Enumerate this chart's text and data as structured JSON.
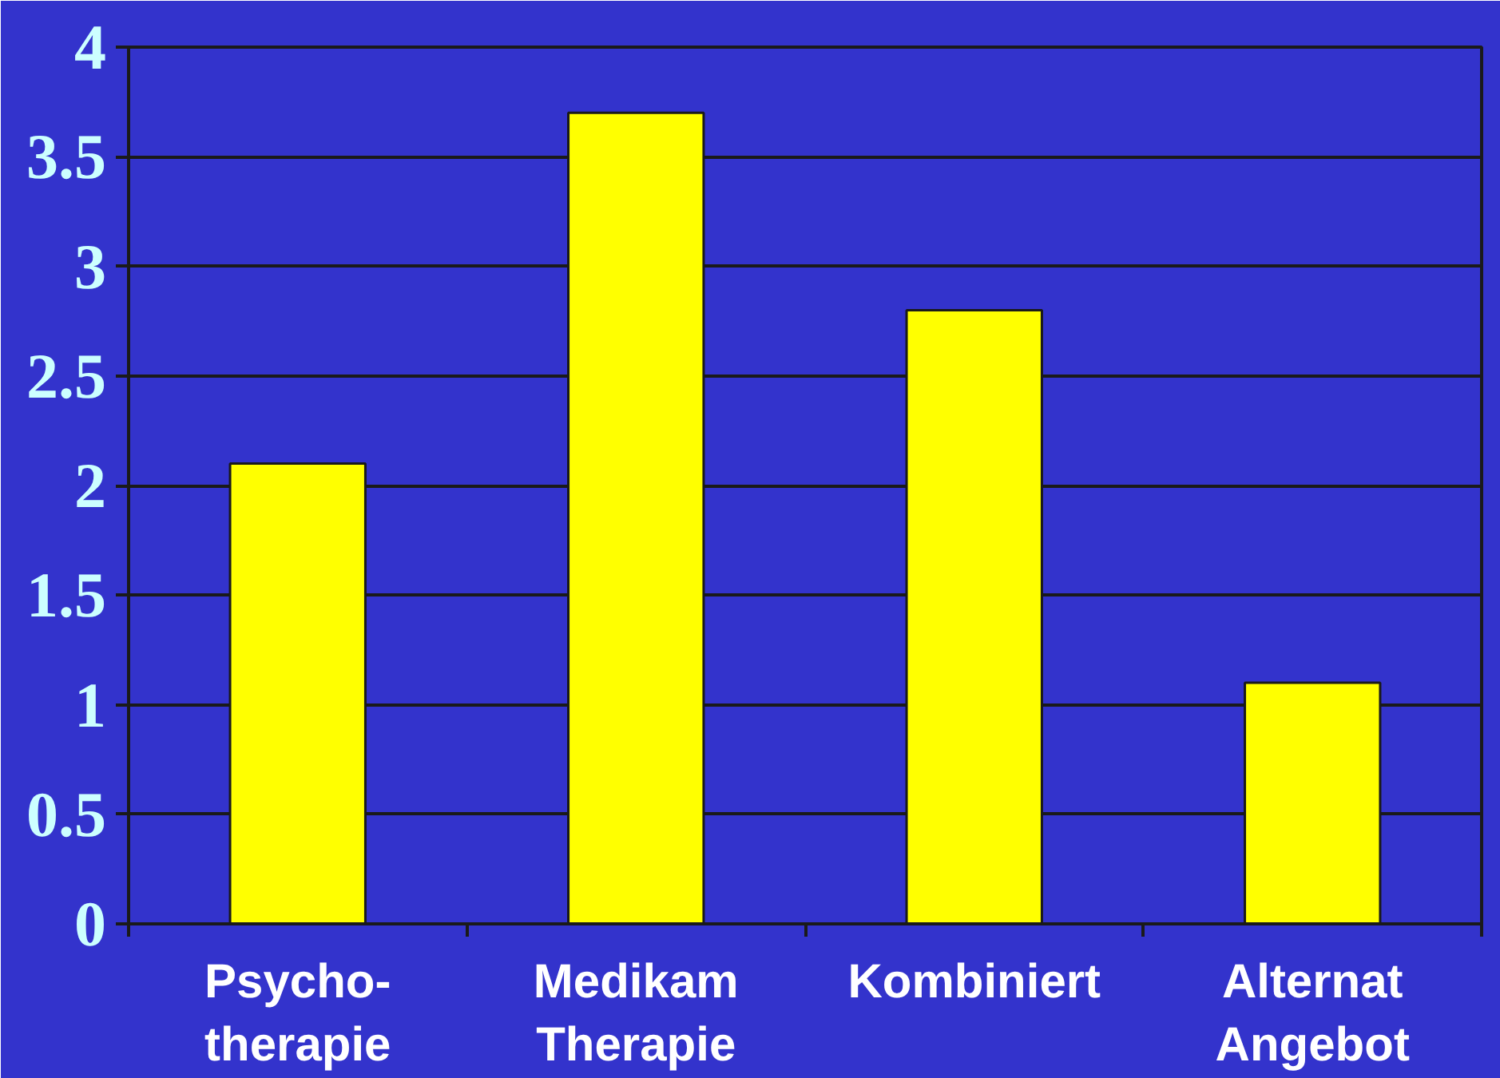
{
  "chart_data": {
    "type": "bar",
    "categories": [
      "Psycho-\ntherapie",
      "Medikam\nTherapie",
      "Kombiniert",
      "Alternat\nAngebot"
    ],
    "values": [
      2.1,
      3.7,
      2.8,
      1.1
    ],
    "color": "#ffff00",
    "ylim": [
      0,
      4
    ],
    "yticks": [
      0,
      0.5,
      1,
      1.5,
      2,
      2.5,
      3,
      3.5,
      4
    ],
    "grid": "y"
  }
}
